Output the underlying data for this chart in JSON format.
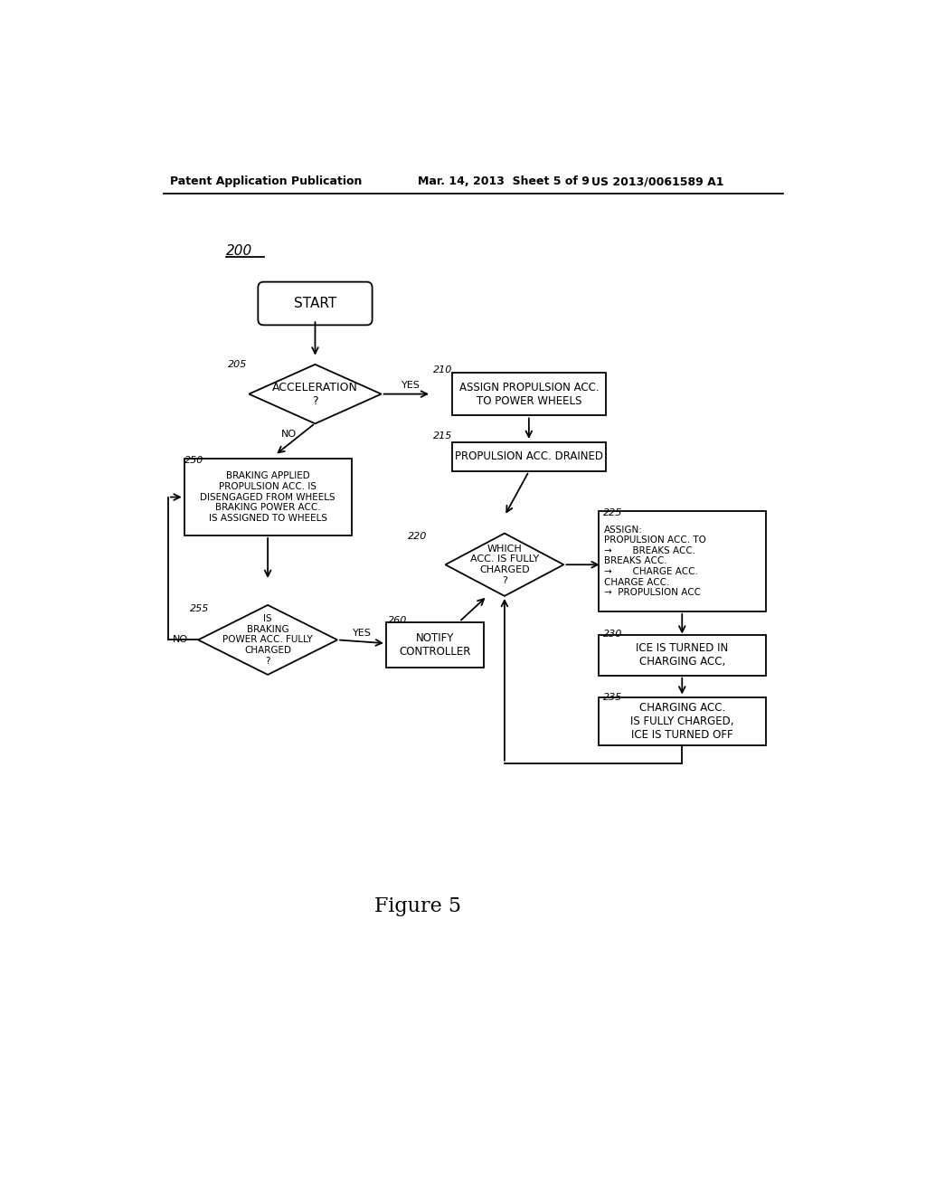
{
  "bg_color": "#ffffff",
  "header_left": "Patent Application Publication",
  "header_mid": "Mar. 14, 2013  Sheet 5 of 9",
  "header_right": "US 2013/0061589 A1",
  "figure_label": "Figure 5",
  "diagram_label": "200"
}
